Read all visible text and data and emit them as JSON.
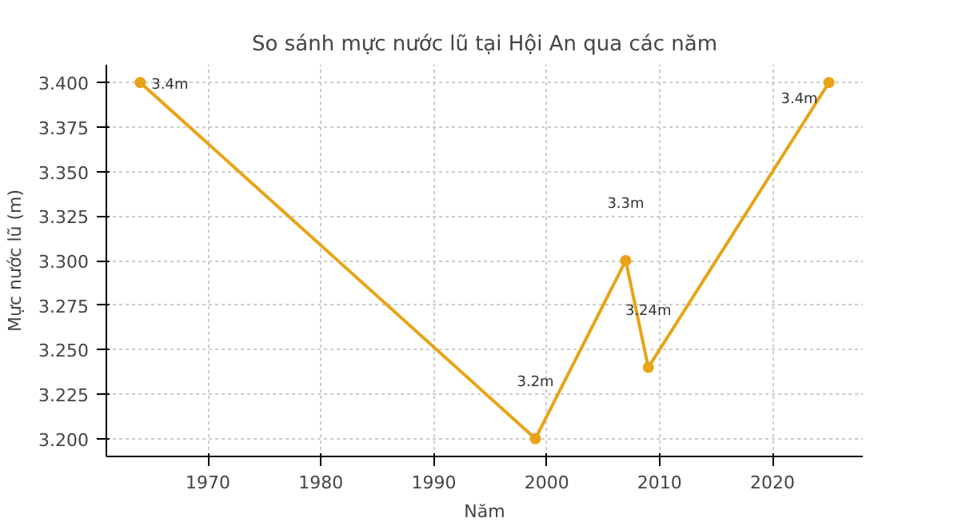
{
  "chart_data": {
    "type": "line",
    "title": "So sánh mực nước lũ tại Hội An qua các năm",
    "xlabel": "Năm",
    "ylabel": "Mực nước lũ (m)",
    "x": [
      1964,
      1999,
      2007,
      2009,
      2025
    ],
    "series": [
      {
        "color": "#e8a317",
        "values": [
          3.4,
          3.2,
          3.3,
          3.24,
          3.4
        ],
        "value_labels": [
          "3.4m",
          "3.2m",
          "3.3m",
          "3.24m",
          "3.4m"
        ]
      }
    ],
    "xlim": [
      1961,
      2028
    ],
    "xticks": [
      1970,
      1980,
      1990,
      2000,
      2010,
      2020
    ],
    "ylim": [
      3.19,
      3.41
    ],
    "yticks": [
      "3.200",
      "3.225",
      "3.250",
      "3.275",
      "3.300",
      "3.325",
      "3.350",
      "3.375",
      "3.400"
    ],
    "grid": true,
    "marker": "circle",
    "line_style": "solid"
  }
}
